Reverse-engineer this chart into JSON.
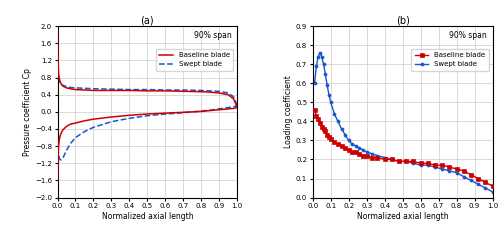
{
  "plot_a": {
    "title": "(a)",
    "annotation": "90% span",
    "xlabel": "Normalized axial length",
    "ylabel": "Pressure coefficient Cp",
    "xlim": [
      0,
      1
    ],
    "ylim": [
      -2,
      2
    ],
    "yticks": [
      -2,
      -1.6,
      -1.2,
      -0.8,
      -0.4,
      0,
      0.4,
      0.8,
      1.2,
      1.6,
      2
    ],
    "xticks": [
      0,
      0.1,
      0.2,
      0.3,
      0.4,
      0.5,
      0.6,
      0.7,
      0.8,
      0.9,
      1
    ],
    "legend": [
      "Baseline blade",
      "Swept blade"
    ],
    "baseline_color": "#cc0000",
    "swept_color": "#1a56cc"
  },
  "plot_b": {
    "title": "(b)",
    "annotation": "90% span",
    "xlabel": "Normalized axial length",
    "ylabel": "Loading coefficient",
    "xlim": [
      0,
      1
    ],
    "ylim": [
      0,
      0.9
    ],
    "yticks": [
      0,
      0.1,
      0.2,
      0.3,
      0.4,
      0.5,
      0.6,
      0.7,
      0.8,
      0.9
    ],
    "xticks": [
      0,
      0.1,
      0.2,
      0.3,
      0.4,
      0.5,
      0.6,
      0.7,
      0.8,
      0.9,
      1
    ],
    "legend": [
      "Baseline blade",
      "Swept blade"
    ],
    "baseline_color": "#cc0000",
    "swept_color": "#1a56cc",
    "baseline_marker": "s",
    "swept_marker": "o"
  },
  "baseline_a_upper_x": [
    0.0005,
    0.001,
    0.003,
    0.006,
    0.01,
    0.015,
    0.02,
    0.03,
    0.05,
    0.07,
    0.1,
    0.15,
    0.2,
    0.3,
    0.4,
    0.5,
    0.6,
    0.7,
    0.8,
    0.85,
    0.9,
    0.95,
    0.98,
    1.0
  ],
  "baseline_a_upper_y": [
    1.9,
    1.65,
    1.15,
    0.9,
    0.78,
    0.7,
    0.65,
    0.6,
    0.56,
    0.54,
    0.52,
    0.51,
    0.5,
    0.5,
    0.5,
    0.49,
    0.49,
    0.48,
    0.47,
    0.46,
    0.44,
    0.4,
    0.3,
    0.1
  ],
  "baseline_a_lower_x": [
    0.0005,
    0.001,
    0.003,
    0.006,
    0.01,
    0.015,
    0.02,
    0.03,
    0.05,
    0.07,
    0.1,
    0.15,
    0.2,
    0.3,
    0.4,
    0.5,
    0.6,
    0.7,
    0.8,
    0.85,
    0.9,
    0.95,
    0.98,
    1.0
  ],
  "baseline_a_lower_y": [
    -1.65,
    -1.45,
    -1.05,
    -0.8,
    -0.65,
    -0.56,
    -0.5,
    -0.42,
    -0.34,
    -0.29,
    -0.26,
    -0.21,
    -0.17,
    -0.12,
    -0.08,
    -0.05,
    -0.03,
    -0.01,
    0.01,
    0.03,
    0.05,
    0.07,
    0.08,
    0.1
  ],
  "swept_a_upper_x": [
    0.0005,
    0.001,
    0.003,
    0.006,
    0.01,
    0.015,
    0.02,
    0.03,
    0.05,
    0.07,
    0.1,
    0.15,
    0.2,
    0.3,
    0.4,
    0.5,
    0.6,
    0.7,
    0.8,
    0.85,
    0.9,
    0.95,
    0.98,
    1.0
  ],
  "swept_a_upper_y": [
    1.0,
    0.92,
    0.8,
    0.74,
    0.7,
    0.67,
    0.65,
    0.62,
    0.59,
    0.57,
    0.56,
    0.55,
    0.54,
    0.53,
    0.52,
    0.52,
    0.51,
    0.51,
    0.5,
    0.49,
    0.48,
    0.44,
    0.35,
    0.14
  ],
  "swept_a_lower_x": [
    0.0005,
    0.001,
    0.003,
    0.006,
    0.01,
    0.015,
    0.02,
    0.03,
    0.05,
    0.07,
    0.1,
    0.15,
    0.2,
    0.3,
    0.4,
    0.5,
    0.6,
    0.7,
    0.8,
    0.85,
    0.9,
    0.95,
    0.98,
    1.0
  ],
  "swept_a_lower_y": [
    -0.65,
    -0.72,
    -0.88,
    -1.0,
    -1.08,
    -1.12,
    -1.12,
    -1.08,
    -0.9,
    -0.75,
    -0.6,
    -0.46,
    -0.36,
    -0.23,
    -0.15,
    -0.09,
    -0.05,
    -0.02,
    0.02,
    0.04,
    0.07,
    0.1,
    0.12,
    0.14
  ],
  "baseline_b_x": [
    0.01,
    0.02,
    0.03,
    0.04,
    0.05,
    0.06,
    0.07,
    0.08,
    0.09,
    0.1,
    0.12,
    0.14,
    0.16,
    0.18,
    0.2,
    0.22,
    0.24,
    0.26,
    0.28,
    0.3,
    0.33,
    0.36,
    0.4,
    0.44,
    0.48,
    0.52,
    0.56,
    0.6,
    0.64,
    0.68,
    0.72,
    0.76,
    0.8,
    0.84,
    0.88,
    0.92,
    0.96,
    1.0
  ],
  "baseline_b_y": [
    0.46,
    0.43,
    0.41,
    0.39,
    0.37,
    0.36,
    0.35,
    0.33,
    0.32,
    0.31,
    0.29,
    0.28,
    0.27,
    0.26,
    0.25,
    0.24,
    0.24,
    0.23,
    0.22,
    0.22,
    0.21,
    0.21,
    0.2,
    0.2,
    0.19,
    0.19,
    0.19,
    0.18,
    0.18,
    0.17,
    0.17,
    0.16,
    0.15,
    0.14,
    0.12,
    0.1,
    0.08,
    0.06
  ],
  "swept_b_x": [
    0.01,
    0.02,
    0.03,
    0.04,
    0.05,
    0.06,
    0.07,
    0.08,
    0.09,
    0.1,
    0.12,
    0.14,
    0.16,
    0.18,
    0.2,
    0.22,
    0.24,
    0.26,
    0.28,
    0.3,
    0.33,
    0.36,
    0.4,
    0.44,
    0.48,
    0.52,
    0.56,
    0.6,
    0.64,
    0.68,
    0.72,
    0.76,
    0.8,
    0.84,
    0.88,
    0.92,
    0.96,
    1.0
  ],
  "swept_b_y": [
    0.6,
    0.69,
    0.74,
    0.76,
    0.74,
    0.7,
    0.65,
    0.59,
    0.54,
    0.5,
    0.44,
    0.4,
    0.36,
    0.33,
    0.3,
    0.28,
    0.27,
    0.26,
    0.25,
    0.24,
    0.23,
    0.22,
    0.21,
    0.2,
    0.19,
    0.19,
    0.18,
    0.17,
    0.17,
    0.16,
    0.15,
    0.14,
    0.13,
    0.11,
    0.09,
    0.07,
    0.05,
    0.03
  ]
}
